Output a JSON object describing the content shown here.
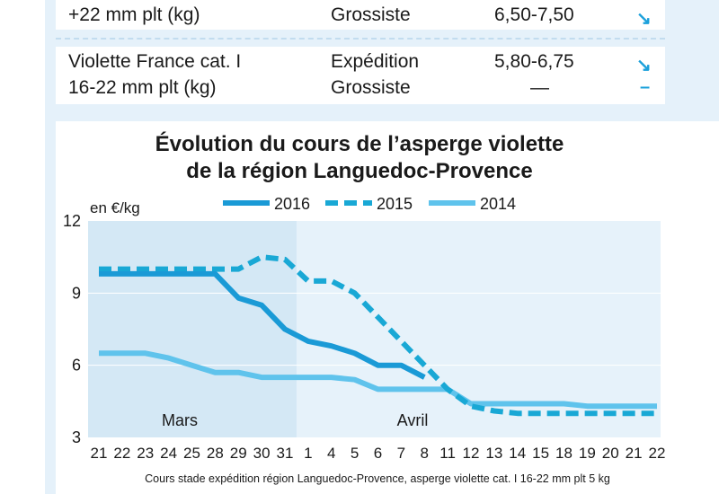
{
  "table": {
    "rows": [
      {
        "product": [
          "",
          "+22 mm plt (kg)"
        ],
        "stage": [
          "",
          "Grossiste"
        ],
        "price": [
          "",
          "6,50-7,50"
        ],
        "trend": [
          "",
          "↘"
        ]
      },
      {
        "product": [
          "Violette France cat. I",
          "16-22 mm plt (kg)"
        ],
        "stage": [
          "Expédition",
          "Grossiste"
        ],
        "price": [
          "5,80-6,75",
          "—"
        ],
        "trend": [
          "↘",
          "–"
        ]
      }
    ]
  },
  "chart_data": {
    "type": "line",
    "title": [
      "Évolution du cours de l’asperge violette",
      "de la région Languedoc-Provence"
    ],
    "ylabel": "en €/kg",
    "ylim": [
      3,
      12
    ],
    "yticks": [
      "3",
      "6",
      "9",
      "12"
    ],
    "categories": [
      "21",
      "22",
      "23",
      "24",
      "25",
      "28",
      "29",
      "30",
      "31",
      "1",
      "4",
      "5",
      "6",
      "7",
      "8",
      "11",
      "12",
      "13",
      "14",
      "15",
      "18",
      "19",
      "20",
      "21",
      "22"
    ],
    "period_labels": [
      "Mars",
      "Avril"
    ],
    "footnote": "Cours stade expédition région Languedoc-Provence, asperge violette cat. I 16-22 mm plt 5 kg",
    "series": [
      {
        "name": "2016",
        "style": "solid",
        "color": "#1a9ad6",
        "values": [
          9.8,
          9.8,
          9.8,
          9.8,
          9.8,
          9.8,
          8.8,
          8.5,
          7.5,
          7.0,
          6.8,
          6.5,
          6.0,
          6.0,
          5.5,
          null,
          null,
          null,
          null,
          null,
          null,
          null,
          null,
          null,
          null
        ]
      },
      {
        "name": "2015",
        "style": "dashed",
        "color": "#19a8d5",
        "values": [
          10.0,
          10.0,
          10.0,
          10.0,
          10.0,
          10.0,
          10.0,
          10.5,
          10.4,
          9.5,
          9.5,
          9.0,
          8.0,
          7.0,
          6.0,
          5.0,
          4.3,
          4.1,
          4.0,
          4.0,
          4.0,
          4.0,
          4.0,
          4.0,
          4.0
        ]
      },
      {
        "name": "2014",
        "style": "solid",
        "color": "#5fc3ec",
        "values": [
          6.5,
          6.5,
          6.5,
          6.3,
          6.0,
          5.7,
          5.7,
          5.5,
          5.5,
          5.5,
          5.5,
          5.4,
          5.0,
          5.0,
          5.0,
          5.0,
          4.4,
          4.4,
          4.4,
          4.4,
          4.4,
          4.3,
          4.3,
          4.3,
          4.3
        ]
      }
    ]
  }
}
